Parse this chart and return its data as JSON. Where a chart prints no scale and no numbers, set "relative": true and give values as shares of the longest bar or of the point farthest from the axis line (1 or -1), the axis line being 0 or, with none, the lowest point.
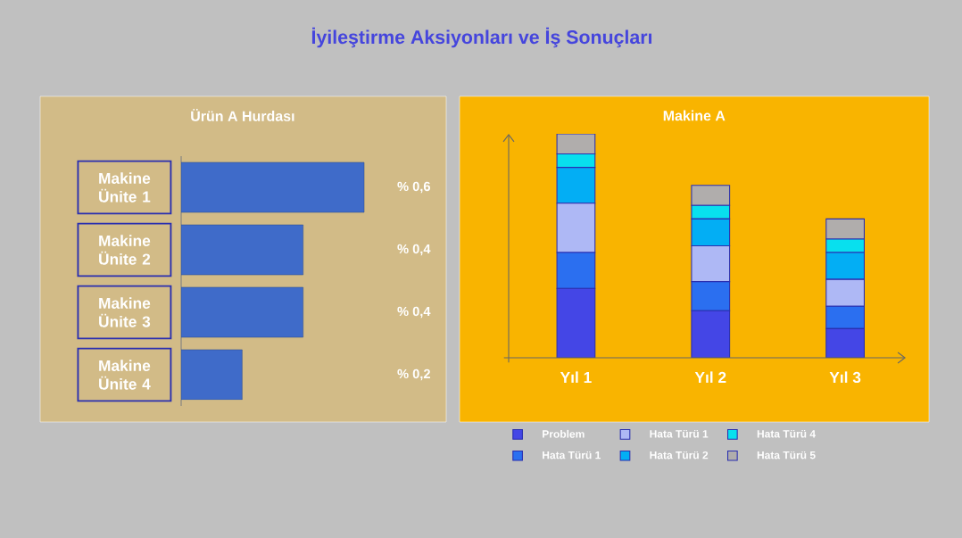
{
  "chart_data": [
    {
      "type": "bar",
      "orientation": "horizontal",
      "title": "Ürün A Hurdası",
      "annotations": [
        "İyileştirme Aksiyonları ve İş Sonuçları"
      ],
      "categories": [
        "Makine Ünite 1",
        "Makine Ünite 2",
        "Makine Ünite 3",
        "Makine Ünite 4"
      ],
      "values": [
        0.6,
        0.4,
        0.4,
        0.2
      ],
      "value_labels": [
        "% 0,6",
        "% 0,4",
        "% 0,4",
        "% 0,2"
      ],
      "color": "#3f6bc9"
    },
    {
      "type": "bar",
      "stacked": true,
      "relative": true,
      "title": "Makine A",
      "legend": "bottom",
      "categories": [
        "Yıl 1",
        "Yıl 2",
        "Yıl 3"
      ],
      "series": [
        {
          "name": "Problem",
          "color": "#4446e6",
          "values": [
            0.31,
            0.21,
            0.13
          ]
        },
        {
          "name": "Hata Türü 1",
          "color": "#2b6ff0",
          "values": [
            0.16,
            0.13,
            0.1
          ]
        },
        {
          "name": "Hata Türü 1",
          "color": "#aeb8f5",
          "values": [
            0.22,
            0.16,
            0.12
          ]
        },
        {
          "name": "Hata Türü 2",
          "color": "#03aef4",
          "values": [
            0.16,
            0.12,
            0.12
          ]
        },
        {
          "name": "Hata Türü 4",
          "color": "#08e0ee",
          "values": [
            0.06,
            0.06,
            0.06
          ]
        },
        {
          "name": "Hata Türü 5",
          "color": "#b0adac",
          "values": [
            0.09,
            0.09,
            0.09
          ]
        }
      ]
    }
  ]
}
